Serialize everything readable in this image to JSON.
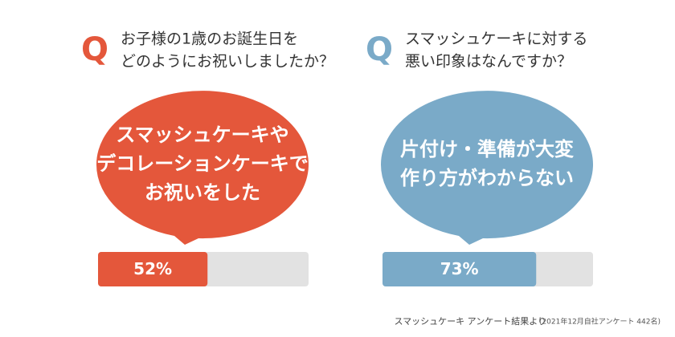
{
  "chart_data": [
    {
      "type": "progress",
      "q_mark": "Q",
      "question": [
        "お子様の1歳のお誕生日を",
        "どのようにお祝いしましたか？"
      ],
      "answer": [
        "スマッシュケーキや",
        "デコレーションケーキで",
        "お祝いをした"
      ],
      "values": [
        52
      ],
      "value_labels": [
        "52%"
      ],
      "xlim": [
        0,
        100
      ],
      "color": "#e4573b",
      "track_color": "#e2e2e2"
    },
    {
      "type": "progress",
      "q_mark": "Q",
      "question": [
        "スマッシュケーキに対する",
        "悪い印象はなんですか？"
      ],
      "answer": [
        "片付け・準備が大変",
        "作り方がわからない"
      ],
      "values": [
        73
      ],
      "value_labels": [
        "73%"
      ],
      "xlim": [
        0,
        100
      ],
      "color": "#7aaac8",
      "track_color": "#e2e2e2"
    }
  ],
  "source": "スマッシュケーキ アンケート結果より",
  "note": "(2021年12月自社アンケート 442名)"
}
